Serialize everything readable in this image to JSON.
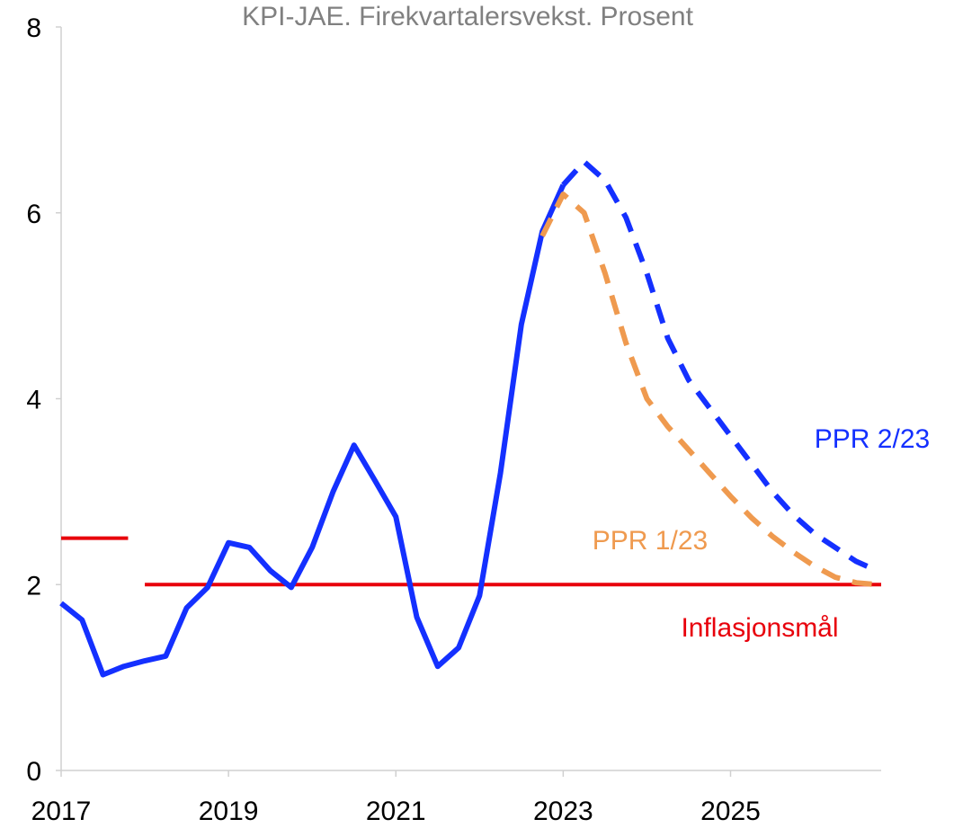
{
  "chart_data": {
    "type": "line",
    "title": "KPI-JAE. Firekvartalersvekst. Prosent",
    "x": [
      2017,
      2017.25,
      2017.5,
      2017.75,
      2018,
      2018.25,
      2018.5,
      2018.75,
      2019,
      2019.25,
      2019.5,
      2019.75,
      2020,
      2020.25,
      2020.5,
      2020.75,
      2021,
      2021.25,
      2021.5,
      2021.75,
      2022,
      2022.25,
      2022.5,
      2022.75,
      2023,
      2023.25,
      2023.5,
      2023.75,
      2024,
      2024.25,
      2024.5,
      2024.75,
      2025,
      2025.25,
      2025.5,
      2025.75,
      2026,
      2026.25,
      2026.5,
      2026.75
    ],
    "series": [
      {
        "color": "#1430ff",
        "dashed": false,
        "values": [
          1.8,
          1.62,
          1.03,
          1.12,
          1.18,
          1.23,
          1.75,
          1.97,
          2.45,
          2.4,
          2.15,
          1.97,
          2.4,
          3.0,
          3.5,
          3.12,
          2.73,
          1.65,
          1.12,
          1.32,
          1.88,
          3.2,
          4.8,
          5.8,
          6.3,
          null,
          null,
          null,
          null,
          null,
          null,
          null,
          null,
          null,
          null,
          null,
          null,
          null,
          null,
          null
        ]
      },
      {
        "name": "PPR 1/23",
        "color": "#ef9a4f",
        "dashed": true,
        "values": [
          null,
          null,
          null,
          null,
          null,
          null,
          null,
          null,
          null,
          null,
          null,
          null,
          null,
          null,
          null,
          null,
          null,
          null,
          null,
          null,
          null,
          null,
          null,
          5.75,
          6.2,
          6.0,
          5.35,
          4.6,
          4.0,
          3.7,
          3.45,
          3.2,
          2.95,
          2.72,
          2.52,
          2.35,
          2.2,
          2.08,
          2.02,
          2.0
        ]
      },
      {
        "name": "PPR 2/23",
        "color": "#1430ff",
        "dashed": true,
        "values": [
          null,
          null,
          null,
          null,
          null,
          null,
          null,
          null,
          null,
          null,
          null,
          null,
          null,
          null,
          null,
          null,
          null,
          null,
          null,
          null,
          null,
          null,
          null,
          null,
          6.3,
          6.55,
          6.35,
          5.95,
          5.35,
          4.65,
          4.2,
          3.9,
          3.6,
          3.3,
          3.0,
          2.75,
          2.55,
          2.4,
          2.25,
          2.15
        ]
      }
    ],
    "target": {
      "label": "Inflasjonsmål",
      "color": "#e8000b",
      "segments": [
        {
          "x": [
            2017,
            2017.8
          ],
          "value": 2.5
        },
        {
          "x": [
            2018,
            2026.8
          ],
          "value": 2
        }
      ]
    },
    "xlim": [
      2017,
      2026.8
    ],
    "xticks": [
      2017,
      2019,
      2021,
      2023,
      2025
    ],
    "ylim": [
      0,
      8
    ],
    "yticks": [
      0,
      2,
      4,
      6,
      8
    ]
  }
}
